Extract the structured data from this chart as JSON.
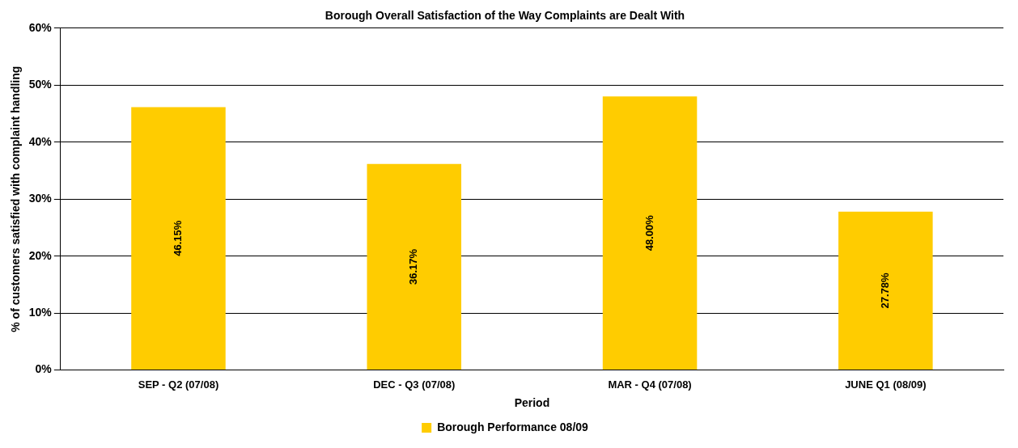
{
  "chart_data": {
    "type": "bar",
    "title": "Borough Overall Satisfaction of the Way Complaints are Dealt With",
    "xlabel": "Period",
    "ylabel": "% of customers satisfied with complaint handling",
    "categories": [
      "SEP - Q2 (07/08)",
      "DEC - Q3 (07/08)",
      "MAR - Q4 (07/08)",
      "JUNE Q1 (08/09)"
    ],
    "series": [
      {
        "name": "Borough Performance 08/09",
        "color": "#ffcc00",
        "values": [
          46.15,
          36.17,
          48.0,
          27.78
        ],
        "value_labels": [
          "46.15%",
          "36.17%",
          "48.00%",
          "27.78%"
        ]
      }
    ],
    "ylim": [
      0,
      60
    ],
    "yticks": [
      {
        "value": 0,
        "label": "0%"
      },
      {
        "value": 10,
        "label": "10%"
      },
      {
        "value": 20,
        "label": "20%"
      },
      {
        "value": 30,
        "label": "30%"
      },
      {
        "value": 40,
        "label": "40%"
      },
      {
        "value": 50,
        "label": "50%"
      },
      {
        "value": 60,
        "label": "60%"
      }
    ],
    "grid": "y",
    "legend": "bottom"
  }
}
